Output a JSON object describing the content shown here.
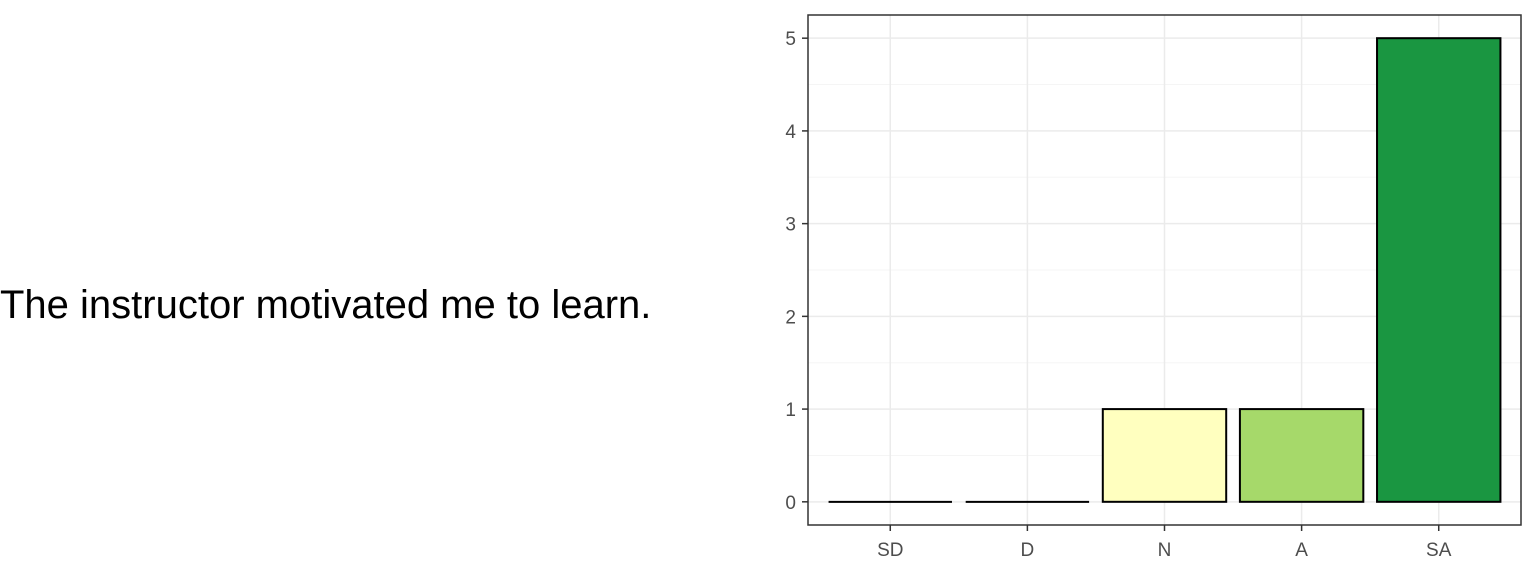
{
  "question": {
    "text": "The instructor motivated me to learn."
  },
  "chart_data": {
    "type": "bar",
    "categories": [
      "SD",
      "D",
      "N",
      "A",
      "SA"
    ],
    "values": [
      0,
      0,
      1,
      1,
      5
    ],
    "colors": [
      "#a50026",
      "#f46d43",
      "#ffffbf",
      "#a6d96a",
      "#1a9641"
    ],
    "title": "",
    "xlabel": "",
    "ylabel": "",
    "ylim": [
      -0.25,
      5.25
    ],
    "yticks": [
      0,
      1,
      2,
      3,
      4,
      5
    ],
    "grid": true,
    "legend": "none",
    "theme": {
      "panel_border": "#333333",
      "grid_major": "#ebebeb",
      "grid_minor": "#f5f5f5",
      "bar_outline": "#000000",
      "tick_label": "#4d4d4d"
    }
  }
}
